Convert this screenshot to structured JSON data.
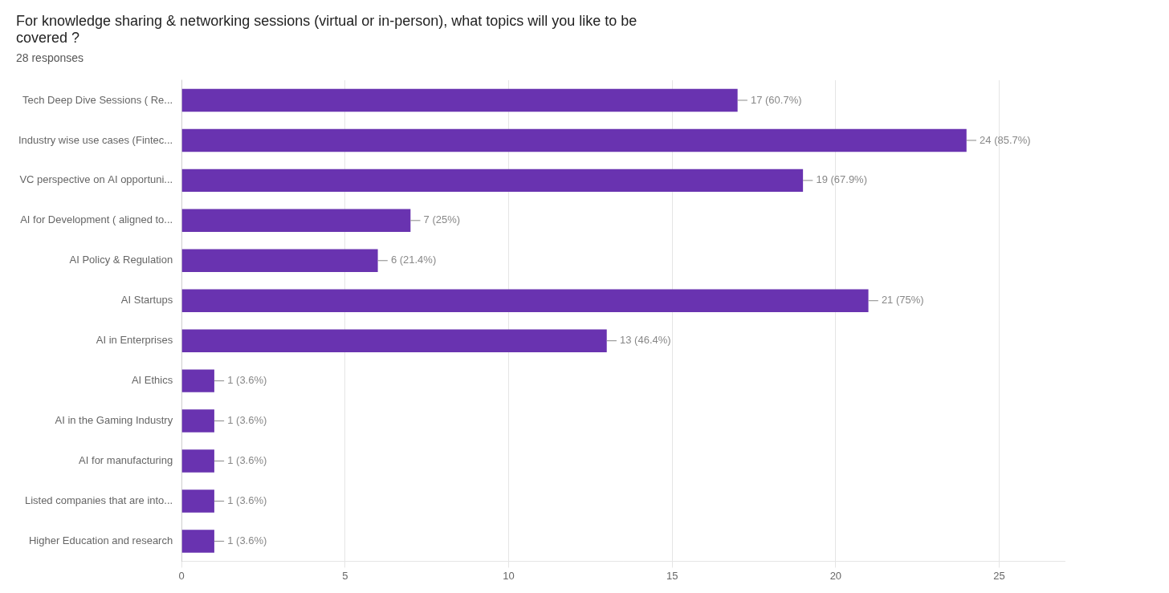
{
  "chart_data": {
    "type": "bar",
    "orientation": "horizontal",
    "title": "For knowledge sharing & networking sessions (virtual or in-person), what topics will you like to be\ncovered ?",
    "subtitle": "28 responses",
    "categories": [
      "Tech Deep Dive Sessions ( Re...",
      "Industry wise use cases (Fintec...",
      "VC perspective on AI opportuni...",
      "AI for Development ( aligned to...",
      "AI Policy & Regulation",
      "AI Startups",
      "AI in Enterprises",
      "AI Ethics",
      "AI in the Gaming Industry",
      "AI for manufacturing",
      "Listed companies that are into...",
      "Higher Education and research"
    ],
    "values": [
      17,
      24,
      19,
      7,
      6,
      21,
      13,
      1,
      1,
      1,
      1,
      1
    ],
    "value_labels": [
      "17 (60.7%)",
      "24 (85.7%)",
      "19 (67.9%)",
      "7 (25%)",
      "6 (21.4%)",
      "21 (75%)",
      "13 (46.4%)",
      "1 (3.6%)",
      "1 (3.6%)",
      "1 (3.6%)",
      "1 (3.6%)",
      "1 (3.6%)"
    ],
    "data_labels": true,
    "color": "#6933b0",
    "xlim": [
      0,
      27
    ],
    "xticks": [
      0,
      5,
      10,
      15,
      20,
      25
    ],
    "grid": true
  }
}
